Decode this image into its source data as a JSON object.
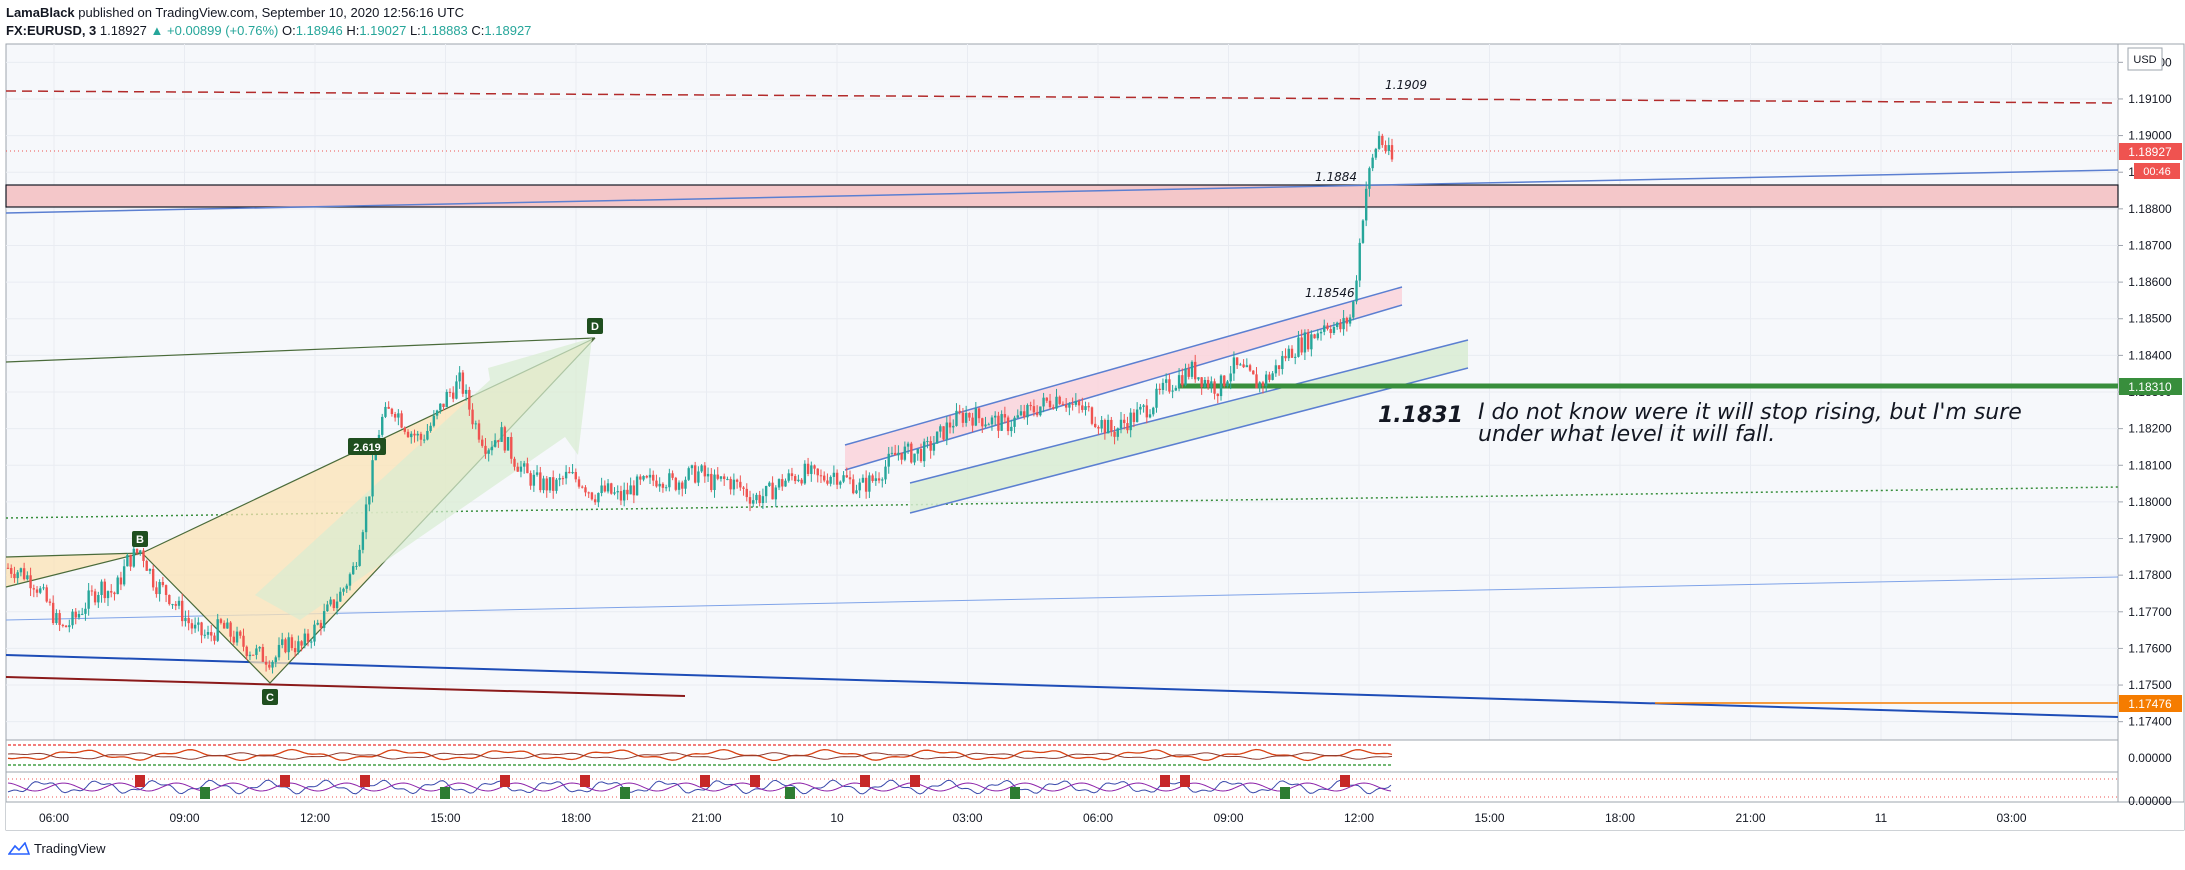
{
  "header": {
    "author": "LamaBlack",
    "published_text": "published on TradingView.com, September 10, 2020 12:56:16 UTC",
    "symbol": "FX:EURUSD, 3",
    "last": "1.18927",
    "change": "▲ +0.00899 (+0.76%)",
    "o_label": "O:",
    "o_value": "1.18946",
    "h_label": "H:",
    "h_value": "1.19027",
    "l_label": "L:",
    "l_value": "1.18883",
    "c_label": "C:",
    "c_value": "1.18927"
  },
  "footer": {
    "brand": "TradingView"
  },
  "colors": {
    "up": "#26a69a",
    "down": "#ef5350",
    "resistance_zone": "#f4c7c9",
    "support_line": "#388e3c",
    "channel_upper_fill": "#fad4da",
    "channel_lower_fill": "#d8ecd2",
    "pattern_fill": "#fbe3b4",
    "blue_line": "#2962ff"
  },
  "chart_data": {
    "type": "candlestick",
    "title": "",
    "ylim": [
      1.1735,
      1.1925
    ],
    "y_ticks": [
      "1.19200",
      "1.19100",
      "1.19000",
      "1.18900",
      "1.18800",
      "1.18700",
      "1.18600",
      "1.18500",
      "1.18400",
      "1.18300",
      "1.18200",
      "1.18100",
      "1.18000",
      "1.17900",
      "1.17800",
      "1.17700",
      "1.17600",
      "1.17500",
      "1.17400"
    ],
    "x_ticks": [
      "06:00",
      "09:00",
      "12:00",
      "15:00",
      "18:00",
      "21:00",
      "10",
      "03:00",
      "06:00",
      "09:00",
      "12:00",
      "15:00",
      "18:00",
      "21:00",
      "11",
      "03:00"
    ],
    "currency_label": "USD",
    "price_tags": [
      {
        "value": "1.18927",
        "color": "#ef5350",
        "sub": "00:46"
      },
      {
        "value": "1.18310",
        "color": "#388e3c"
      },
      {
        "value": "1.17476",
        "color": "#f57c00"
      }
    ],
    "annotations": {
      "level_1909": "1.1909",
      "level_1884": "1.1884",
      "level_18546": "1.18546",
      "level_1831": "1.1831",
      "comment_line1": "I do not know were it will stop rising, but I'm sure",
      "comment_line2": "under what level it will fall.",
      "ratio": "2.619"
    },
    "pattern_points": [
      "B",
      "C",
      "D"
    ],
    "price_path": [
      [
        0,
        1.1782
      ],
      [
        3,
        1.1781
      ],
      [
        6,
        1.1778
      ],
      [
        9,
        1.1772
      ],
      [
        12,
        1.1765
      ],
      [
        15,
        1.1768
      ],
      [
        18,
        1.1773
      ],
      [
        21,
        1.1777
      ],
      [
        24,
        1.1775
      ],
      [
        27,
        1.1784
      ],
      [
        30,
        1.1787
      ],
      [
        33,
        1.1778
      ],
      [
        36,
        1.1775
      ],
      [
        39,
        1.177
      ],
      [
        42,
        1.1765
      ],
      [
        45,
        1.1763
      ],
      [
        48,
        1.1766
      ],
      [
        51,
        1.1763
      ],
      [
        54,
        1.176
      ],
      [
        57,
        1.1758
      ],
      [
        60,
        1.1757
      ],
      [
        63,
        1.1762
      ],
      [
        66,
        1.176
      ],
      [
        69,
        1.1765
      ],
      [
        72,
        1.177
      ],
      [
        75,
        1.1775
      ],
      [
        78,
        1.1782
      ],
      [
        81,
        1.18
      ],
      [
        84,
        1.1822
      ],
      [
        87,
        1.1826
      ],
      [
        90,
        1.182
      ],
      [
        93,
        1.1817
      ],
      [
        96,
        1.1822
      ],
      [
        99,
        1.1829
      ],
      [
        102,
        1.1833
      ],
      [
        105,
        1.1822
      ],
      [
        108,
        1.1815
      ],
      [
        111,
        1.1819
      ],
      [
        114,
        1.1812
      ],
      [
        117,
        1.1807
      ],
      [
        120,
        1.1805
      ],
      [
        123,
        1.1804
      ],
      [
        126,
        1.1807
      ],
      [
        129,
        1.1806
      ],
      [
        132,
        1.1802
      ],
      [
        135,
        1.1803
      ],
      [
        138,
        1.1801
      ],
      [
        141,
        1.1804
      ],
      [
        144,
        1.1805
      ],
      [
        147,
        1.1807
      ],
      [
        150,
        1.1805
      ],
      [
        153,
        1.1807
      ],
      [
        156,
        1.1808
      ],
      [
        159,
        1.1805
      ],
      [
        162,
        1.1806
      ],
      [
        165,
        1.1804
      ],
      [
        168,
        1.1801
      ],
      [
        171,
        1.1802
      ],
      [
        174,
        1.1805
      ],
      [
        177,
        1.1807
      ],
      [
        180,
        1.1808
      ],
      [
        183,
        1.1806
      ],
      [
        186,
        1.1808
      ],
      [
        189,
        1.1806
      ],
      [
        192,
        1.1804
      ],
      [
        195,
        1.1806
      ],
      [
        198,
        1.181
      ],
      [
        201,
        1.1814
      ],
      [
        204,
        1.1813
      ],
      [
        207,
        1.1814
      ],
      [
        210,
        1.1818
      ],
      [
        213,
        1.1822
      ],
      [
        216,
        1.1824
      ],
      [
        219,
        1.1823
      ],
      [
        222,
        1.1822
      ],
      [
        225,
        1.1821
      ],
      [
        228,
        1.1823
      ],
      [
        231,
        1.1825
      ],
      [
        234,
        1.1827
      ],
      [
        237,
        1.1829
      ],
      [
        240,
        1.1826
      ],
      [
        243,
        1.1825
      ],
      [
        246,
        1.1822
      ],
      [
        249,
        1.1819
      ],
      [
        252,
        1.1822
      ],
      [
        255,
        1.1824
      ],
      [
        258,
        1.1827
      ],
      [
        261,
        1.1831
      ],
      [
        264,
        1.1834
      ],
      [
        267,
        1.1836
      ],
      [
        270,
        1.1833
      ],
      [
        273,
        1.1831
      ],
      [
        276,
        1.1837
      ],
      [
        279,
        1.1835
      ],
      [
        282,
        1.1832
      ],
      [
        285,
        1.1835
      ],
      [
        288,
        1.184
      ],
      [
        291,
        1.1843
      ],
      [
        294,
        1.1845
      ],
      [
        297,
        1.1849
      ],
      [
        300,
        1.1847
      ],
      [
        303,
        1.1851
      ],
      [
        306,
        1.1885
      ],
      [
        309,
        1.19
      ],
      [
        312,
        1.1893
      ]
    ]
  }
}
